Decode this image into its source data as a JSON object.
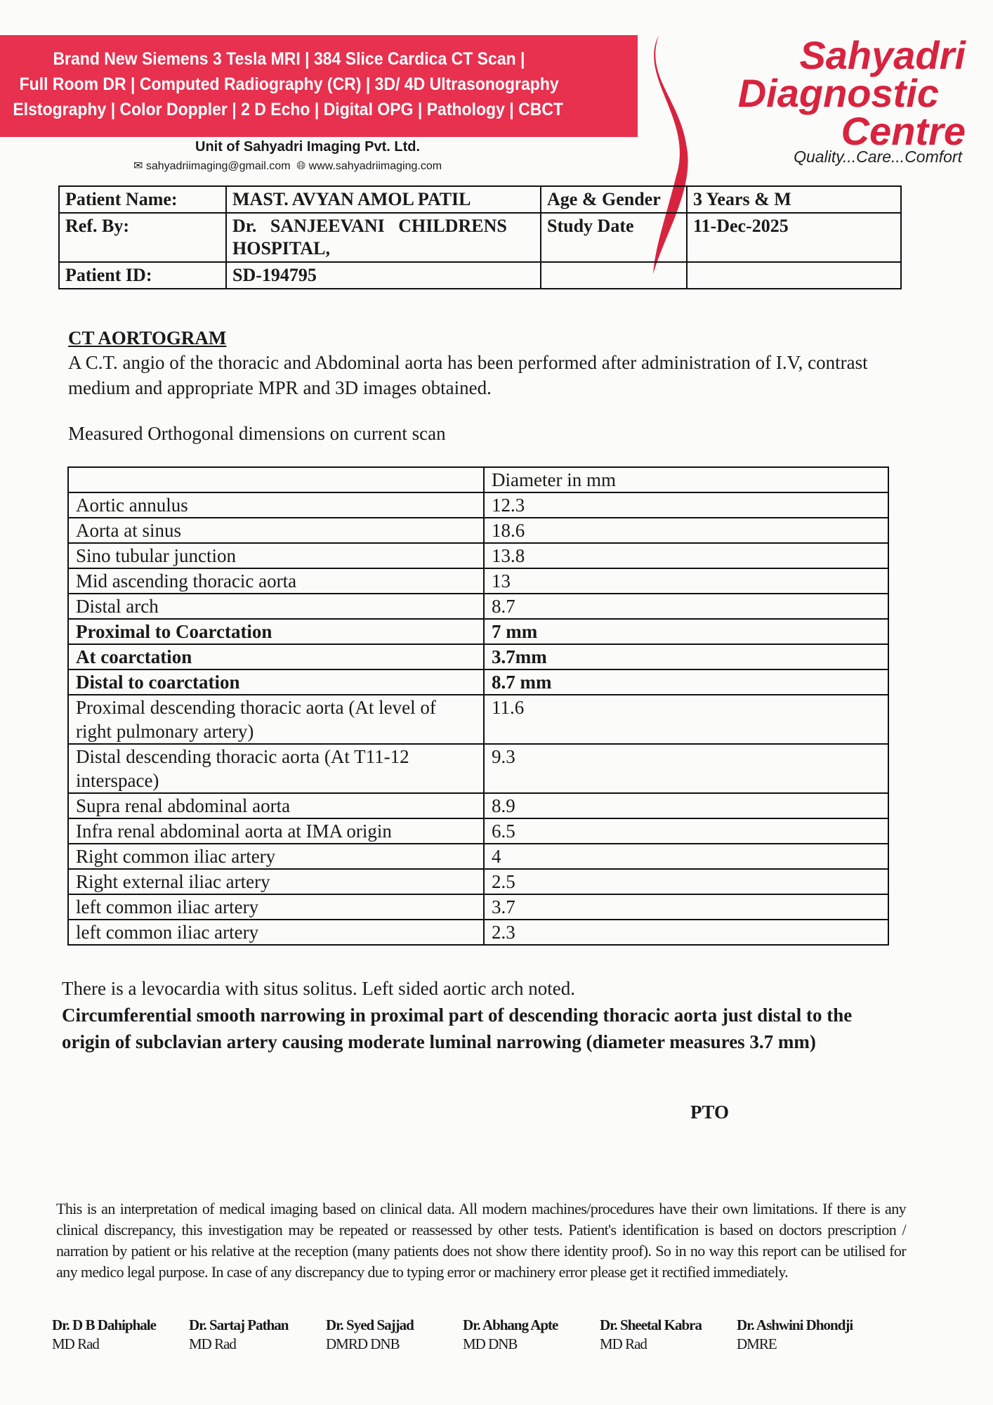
{
  "header": {
    "banner_lines": [
      "Brand New Siemens 3 Tesla MRI | 384 Slice Cardica CT Scan |",
      "Full Room DR | Computed Radiography (CR) | 3D/ 4D Ultrasonography",
      "Elstography | Color Doppler | 2 D Echo | Digital OPG | Pathology | CBCT"
    ],
    "brand_color": "#e8304f",
    "logo_lines": [
      "Sahyadri",
      "Diagnostic",
      "Centre"
    ],
    "tagline": "Quality...Care...Comfort",
    "unit": "Unit of Sahyadri Imaging Pvt. Ltd.",
    "email": "sahyadriimaging@gmail.com",
    "website": "www.sahyadriimaging.com"
  },
  "patient": {
    "name_label": "Patient Name:",
    "name": "MAST. AVYAN AMOL PATIL",
    "age_label": "Age & Gender",
    "age": "3 Years & M",
    "ref_label": "Ref. By:",
    "ref": "Dr.   SANJEEVANI   CHILDRENS HOSPITAL,",
    "date_label": "Study Date",
    "date": "11-Dec-2025",
    "id_label": "Patient ID:",
    "id": "SD-194795"
  },
  "report": {
    "title": "CT AORTOGRAM",
    "intro": "A C.T. angio of the thoracic and Abdominal aorta has been performed after administration of I.V, contrast medium and appropriate MPR and 3D images obtained.",
    "measured": "Measured Orthogonal dimensions on current scan",
    "table_header": "Diameter in mm",
    "rows": [
      {
        "site": "Aortic annulus",
        "value": "12.3"
      },
      {
        "site": "Aorta at sinus",
        "value": "18.6"
      },
      {
        "site": "Sino tubular junction",
        "value": "13.8"
      },
      {
        "site": "Mid ascending thoracic aorta",
        "value": "13"
      },
      {
        "site": "Distal arch",
        "value": "8.7"
      },
      {
        "site": "Proximal to Coarctation",
        "value": "7 mm"
      },
      {
        "site": "At coarctation",
        "value": "3.7mm"
      },
      {
        "site": "Distal to coarctation",
        "value": "8.7 mm"
      },
      {
        "site": "Proximal descending thoracic aorta (At level of right pulmonary artery)",
        "value": "11.6"
      },
      {
        "site": "Distal descending thoracic aorta (At T11-12 interspace)",
        "value": "9.3"
      },
      {
        "site": "Supra renal abdominal aorta",
        "value": "8.9"
      },
      {
        "site": "Infra renal abdominal aorta at IMA origin",
        "value": "6.5"
      },
      {
        "site": "Right common iliac artery",
        "value": "4"
      },
      {
        "site": "Right external iliac artery",
        "value": "2.5"
      },
      {
        "site": "left common iliac artery",
        "value": "3.7"
      },
      {
        "site": "left common iliac artery",
        "value": "2.3"
      }
    ],
    "finding_1": "There is a levocardia with situs solitus. Left sided aortic arch noted.",
    "finding_2": "Circumferential smooth narrowing in proximal part of descending thoracic aorta just distal to the origin of subclavian artery causing moderate luminal narrowing (diameter measures 3.7 mm)",
    "pto": "PTO"
  },
  "footer": {
    "disclaimer": "This is an interpretation of medical imaging based on clinical data. All modern machines/procedures have their own limitations. If there is any clinical discrepancy, this investigation may be repeated or reassessed by other tests. Patient's identification is based on doctors prescription / narration by patient or his relative at the reception (many patients does not show there identity proof). So in no way this report can be utilised for any medico legal purpose. In case of any discrepancy due to typing error or machinery error please get it rectified immediately.",
    "doctors": [
      {
        "name": "Dr. D B Dahiphale",
        "degree": "MD Rad"
      },
      {
        "name": "Dr. Sartaj Pathan",
        "degree": "MD Rad"
      },
      {
        "name": "Dr. Syed Sajjad",
        "degree": "DMRD DNB"
      },
      {
        "name": "Dr. Abhang Apte",
        "degree": "MD DNB"
      },
      {
        "name": "Dr. Sheetal Kabra",
        "degree": "MD Rad"
      },
      {
        "name": "Dr. Ashwini Dhondji",
        "degree": "DMRE"
      }
    ]
  }
}
